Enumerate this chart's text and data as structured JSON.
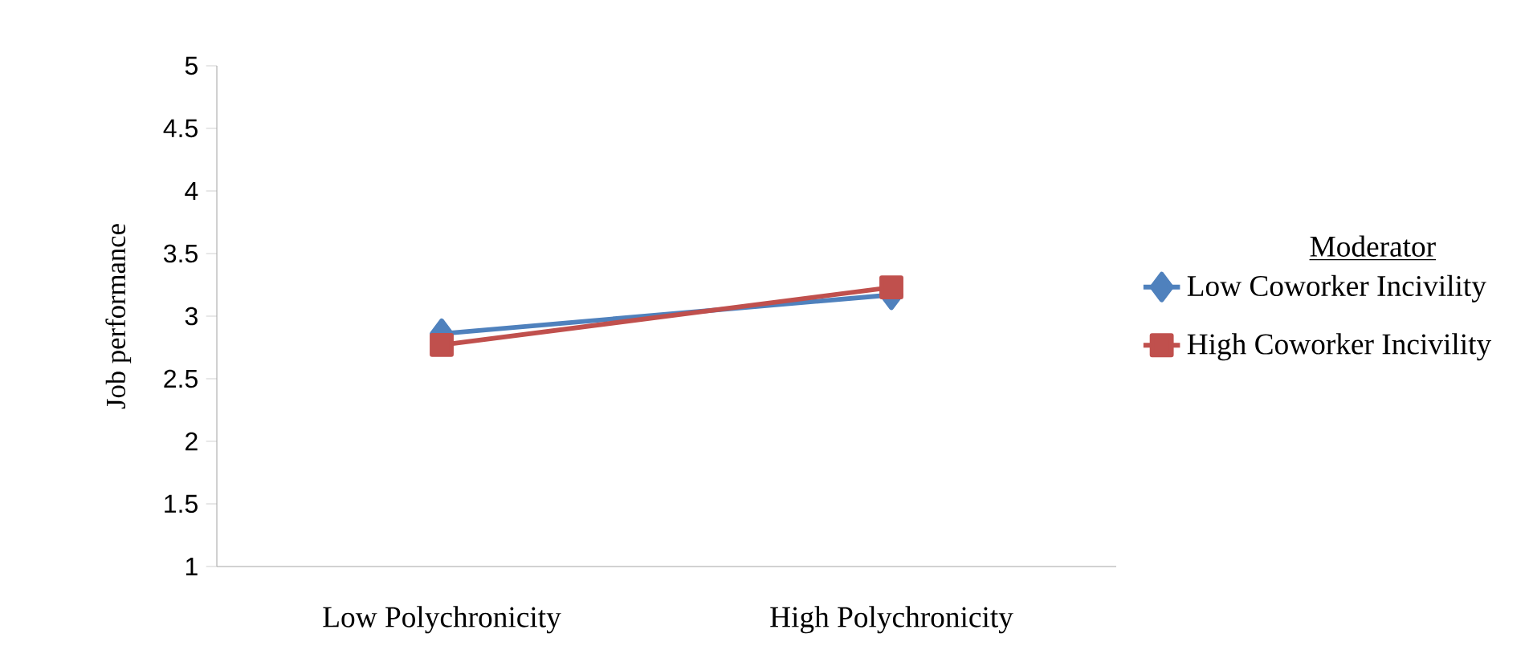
{
  "chart_data": {
    "type": "line",
    "ylabel": "Job performance",
    "legend_title": "Moderator",
    "categories": [
      "Low Polychronicity",
      "High Polychronicity"
    ],
    "series": [
      {
        "name": "Low Coworker Incivility",
        "color": "#4f81bd",
        "marker": "diamond",
        "values": [
          2.86,
          3.17
        ]
      },
      {
        "name": "High Coworker Incivility",
        "color": "#c0504d",
        "marker": "square",
        "values": [
          2.77,
          3.23
        ]
      }
    ],
    "ylim": [
      1,
      5
    ],
    "yticks": [
      1,
      1.5,
      2,
      2.5,
      3,
      3.5,
      4,
      4.5,
      5
    ],
    "grid": false,
    "legend": "right"
  }
}
